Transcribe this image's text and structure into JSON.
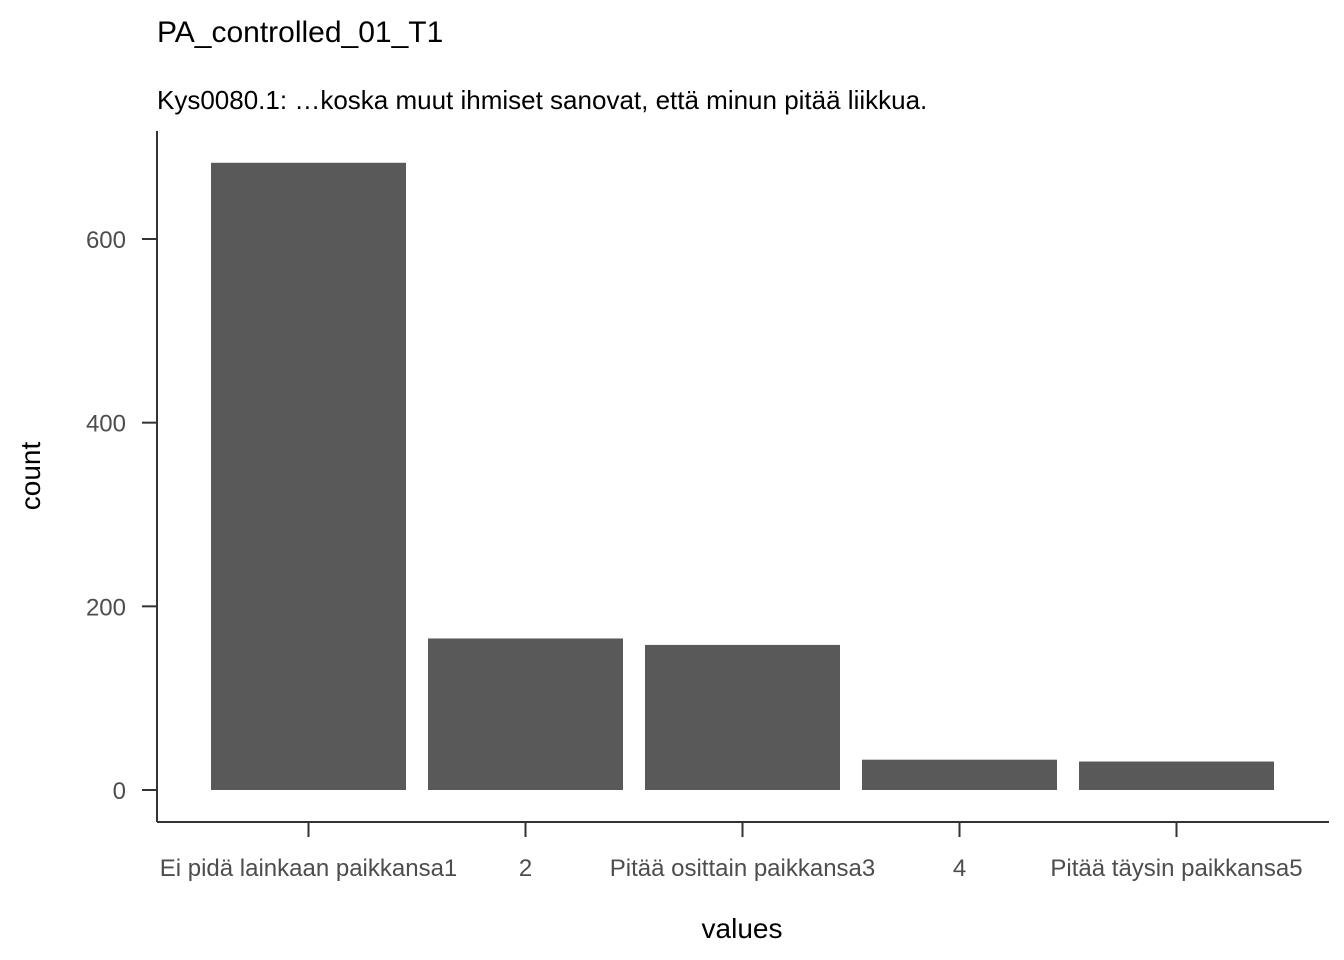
{
  "chart_data": {
    "type": "bar",
    "title": "PA_controlled_01_T1",
    "subtitle": "Kys0080.1: …koska muut ihmiset sanovat, että minun pitää liikkua.",
    "xlabel": "values",
    "ylabel": "count",
    "categories": [
      "Ei pidä lainkaan paikkansa1",
      "2",
      "Pitää osittain paikkansa3",
      "4",
      "Pitää täysin paikkansa5"
    ],
    "values": [
      683,
      165,
      158,
      33,
      31
    ],
    "ylim": [
      0,
      720
    ],
    "yticks": [
      0,
      200,
      400,
      600
    ],
    "bar_color": "#595959",
    "axis_color": "#333333",
    "grid": false,
    "legend": "none"
  }
}
